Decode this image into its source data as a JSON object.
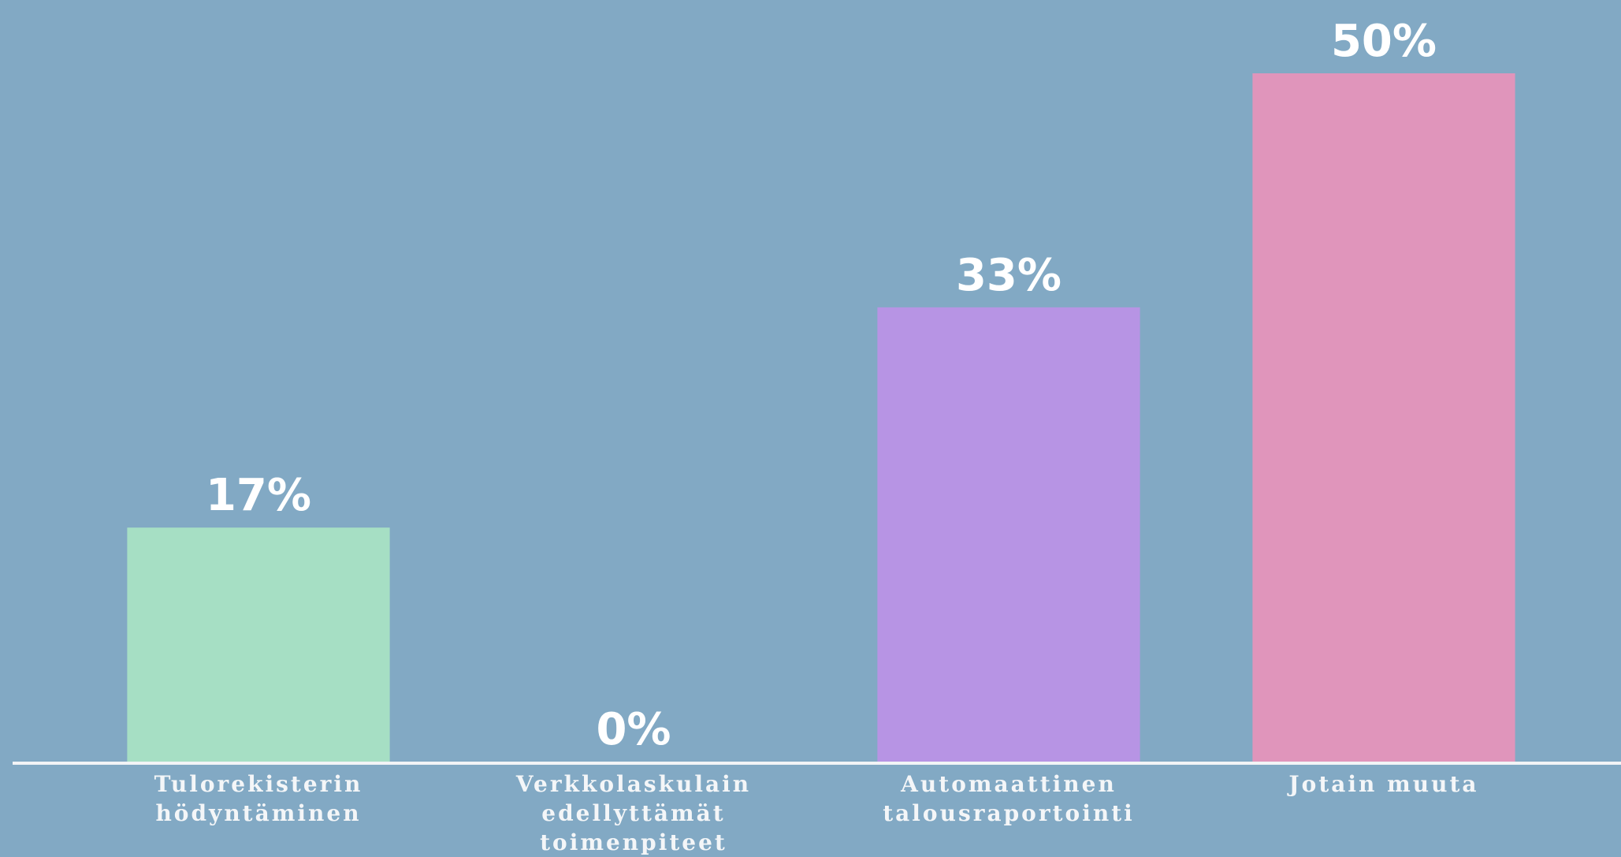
{
  "chart_data": {
    "type": "bar",
    "categories": [
      "Tulorekisterin hödyntäminen",
      "Verkkolaskulain edellyttämät toimenpiteet",
      "Automaattinen talousraportointi",
      "Jotain muuta"
    ],
    "values": [
      17,
      0,
      33,
      50
    ],
    "value_labels": [
      "17%",
      "0%",
      "33%",
      "50%"
    ],
    "colors": [
      "#a6dfc4",
      "#9fd0e0",
      "#b794e4",
      "#e095bb"
    ],
    "ylim": [
      0,
      50
    ]
  }
}
